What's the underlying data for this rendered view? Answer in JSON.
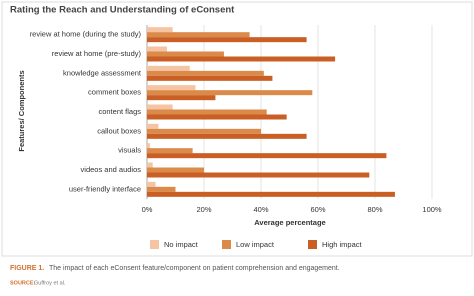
{
  "chart_data": {
    "type": "hbar",
    "title": "Rating the Reach and Understanding of eConsent",
    "x_label": "Average percentage",
    "y_label": "Features/ Components",
    "categories": [
      "review at home (during the study)",
      "review at home (pre-study)",
      "knowledge assessment",
      "comment boxes",
      "content flags",
      "callout boxes",
      "visuals",
      "videos and audios",
      "user-friendly interface"
    ],
    "series": [
      {
        "name": "No impact",
        "color": "#f5c4a2",
        "values": [
          9,
          7,
          15,
          17,
          9,
          4,
          1,
          2,
          3
        ]
      },
      {
        "name": "Low impact",
        "color": "#dc8a4a",
        "values": [
          36,
          27,
          41,
          58,
          42,
          40,
          16,
          20,
          10
        ]
      },
      {
        "name": "High impact",
        "color": "#c95f24",
        "values": [
          56,
          66,
          44,
          24,
          49,
          56,
          84,
          78,
          87
        ]
      }
    ],
    "xlim": [
      0,
      100
    ],
    "xticks": [
      {
        "value": 0,
        "label": "0%"
      },
      {
        "value": 20,
        "label": "20%"
      },
      {
        "value": 40,
        "label": "40%"
      },
      {
        "value": 60,
        "label": "60%"
      },
      {
        "value": 80,
        "label": "80%"
      },
      {
        "value": 100,
        "label": "100%"
      }
    ],
    "grid": true
  },
  "caption": {
    "figure": "FIGURE 1.",
    "text": "The impact of each eConsent feature/component on patient comprehension and engagement."
  },
  "source": {
    "label": "SOURCE:",
    "text": "Guffroy et al."
  }
}
